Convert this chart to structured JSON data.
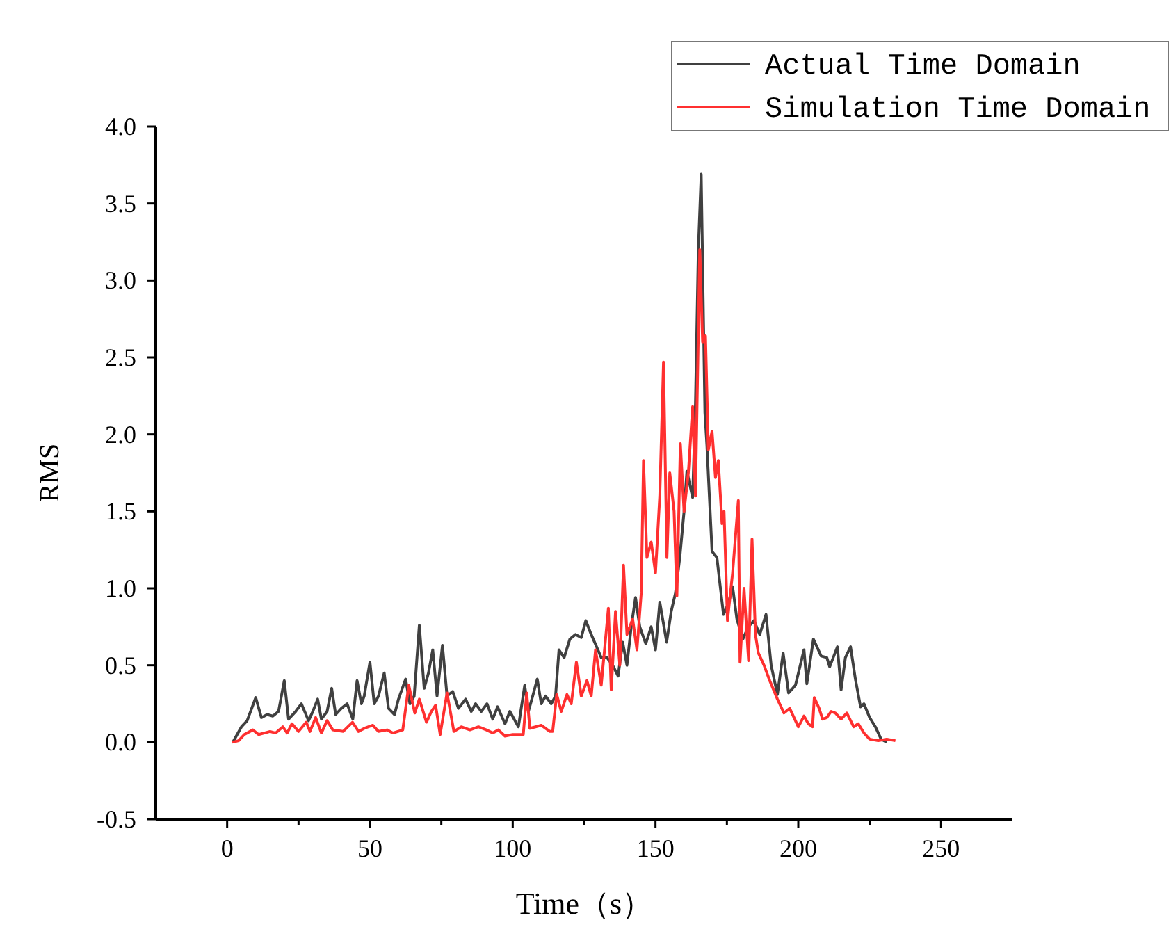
{
  "chart_data": {
    "type": "line",
    "xlabel": "Time（s）",
    "ylabel": "RMS",
    "xlim": [
      -25,
      275
    ],
    "ylim": [
      -0.5,
      4.0
    ],
    "xticks": [
      0,
      {
        "value": 25,
        "label": null
      },
      50,
      {
        "value": 75,
        "label": null
      },
      100,
      {
        "value": 125,
        "label": null
      },
      150,
      {
        "value": 175,
        "label": null
      },
      200,
      {
        "value": 225,
        "label": null
      },
      250
    ],
    "yticks": [
      -0.5,
      {
        "value": 0,
        "label": "0.0"
      },
      0.5,
      {
        "value": 1,
        "label": "1.0"
      },
      1.5,
      {
        "value": 2,
        "label": "2.0"
      },
      2.5,
      {
        "value": 3,
        "label": "3.0"
      },
      3.5,
      {
        "value": 4,
        "label": "4.0"
      }
    ],
    "legend": "top right",
    "grid": false,
    "line_style": "solid",
    "marker": "none",
    "series": [
      {
        "name": "Actual Time Domain",
        "color": "#404040",
        "x": [
          2,
          5,
          7,
          10,
          12,
          14,
          16,
          18,
          20,
          21.5,
          24,
          26,
          28.5,
          30,
          31.7,
          33,
          35,
          36.6,
          38,
          40,
          42,
          44,
          45.5,
          47,
          48,
          50,
          51.5,
          53,
          55,
          56.5,
          58.6,
          60,
          62.5,
          64,
          65.5,
          67.3,
          69,
          70.5,
          72,
          73.5,
          75.4,
          77,
          79,
          81,
          83.5,
          85.5,
          87,
          89,
          91,
          93,
          94.7,
          97.3,
          99,
          100.5,
          102,
          104.2,
          105.5,
          107,
          108.6,
          110,
          111.5,
          113.5,
          115,
          116.2,
          118,
          120,
          122,
          124,
          125.6,
          127.5,
          129.6,
          131,
          133,
          135,
          136.9,
          138.5,
          140,
          141.5,
          143,
          144.5,
          146.6,
          148.5,
          150,
          151.5,
          153.9,
          155.5,
          157,
          158.5,
          160,
          161,
          163,
          164,
          165,
          166,
          167.3,
          168,
          169.8,
          171.5,
          173.8,
          175.5,
          177,
          178.5,
          180.6,
          182.5,
          184.5,
          186.5,
          188.7,
          190.5,
          192.7,
          194.7,
          196.6,
          199,
          202,
          203,
          205.3,
          208,
          210,
          211,
          213.7,
          215,
          216.5,
          218.3,
          220,
          221.8,
          223,
          225,
          227,
          229,
          231
        ],
        "values": [
          0.0,
          0.1,
          0.14,
          0.29,
          0.16,
          0.18,
          0.17,
          0.2,
          0.4,
          0.15,
          0.2,
          0.25,
          0.14,
          0.2,
          0.28,
          0.15,
          0.2,
          0.35,
          0.18,
          0.22,
          0.25,
          0.15,
          0.4,
          0.25,
          0.3,
          0.52,
          0.25,
          0.3,
          0.45,
          0.22,
          0.18,
          0.28,
          0.41,
          0.25,
          0.3,
          0.76,
          0.35,
          0.45,
          0.6,
          0.3,
          0.63,
          0.3,
          0.33,
          0.22,
          0.28,
          0.2,
          0.25,
          0.2,
          0.25,
          0.15,
          0.23,
          0.12,
          0.2,
          0.15,
          0.1,
          0.37,
          0.2,
          0.3,
          0.41,
          0.25,
          0.3,
          0.25,
          0.3,
          0.6,
          0.55,
          0.67,
          0.7,
          0.68,
          0.79,
          0.7,
          0.61,
          0.55,
          0.55,
          0.5,
          0.43,
          0.65,
          0.5,
          0.75,
          0.94,
          0.75,
          0.64,
          0.75,
          0.6,
          0.91,
          0.65,
          0.85,
          0.97,
          1.2,
          1.5,
          1.76,
          1.59,
          2.2,
          3.2,
          3.69,
          2.14,
          1.93,
          1.24,
          1.2,
          0.83,
          0.9,
          1.01,
          0.8,
          0.67,
          0.75,
          0.79,
          0.7,
          0.83,
          0.5,
          0.31,
          0.58,
          0.32,
          0.37,
          0.6,
          0.38,
          0.67,
          0.56,
          0.55,
          0.49,
          0.62,
          0.34,
          0.55,
          0.62,
          0.41,
          0.23,
          0.25,
          0.16,
          0.1,
          0.02,
          0.0
        ]
      },
      {
        "name": "Simulation Time Domain",
        "color": "#ff3030",
        "x": [
          1.8,
          4,
          6,
          9,
          11,
          13,
          15,
          17,
          19.5,
          21,
          22.7,
          25,
          27.7,
          29,
          31,
          33,
          35,
          37,
          40.6,
          43.9,
          46,
          48,
          51,
          53,
          56,
          58,
          61.5,
          63.6,
          65.7,
          67.3,
          69.8,
          71.5,
          73,
          74.6,
          77,
          79.4,
          82,
          85,
          88,
          90.8,
          93,
          95,
          97.3,
          100,
          103.7,
          104.9,
          106,
          108,
          110,
          113,
          114,
          115.4,
          117,
          119,
          120.5,
          122.3,
          124,
          126,
          127.5,
          129,
          131,
          133.5,
          134.5,
          136,
          137.5,
          138.8,
          140,
          142,
          143.5,
          145,
          145.8,
          147,
          148.5,
          150,
          151.5,
          152.8,
          154,
          155,
          156.5,
          157.5,
          158.7,
          160,
          161.5,
          163,
          164,
          165.5,
          166.5,
          167.5,
          168.5,
          169.8,
          171,
          172,
          173.3,
          174,
          175.2,
          177,
          179,
          179.6,
          181,
          182.6,
          183.8,
          185,
          186,
          188,
          190,
          192.7,
          195,
          197,
          200,
          202,
          203.5,
          205,
          205.6,
          207.3,
          208.5,
          210,
          211.5,
          213,
          215,
          217,
          219.4,
          221,
          223,
          225,
          228,
          231,
          234
        ],
        "values": [
          0.0,
          0.01,
          0.05,
          0.08,
          0.05,
          0.06,
          0.07,
          0.06,
          0.1,
          0.06,
          0.12,
          0.07,
          0.13,
          0.07,
          0.16,
          0.06,
          0.14,
          0.08,
          0.07,
          0.13,
          0.07,
          0.09,
          0.11,
          0.07,
          0.08,
          0.06,
          0.08,
          0.37,
          0.19,
          0.28,
          0.13,
          0.2,
          0.24,
          0.05,
          0.32,
          0.07,
          0.1,
          0.08,
          0.1,
          0.08,
          0.06,
          0.08,
          0.04,
          0.05,
          0.05,
          0.32,
          0.09,
          0.1,
          0.11,
          0.07,
          0.07,
          0.31,
          0.2,
          0.31,
          0.25,
          0.52,
          0.3,
          0.4,
          0.3,
          0.6,
          0.37,
          0.87,
          0.34,
          0.85,
          0.5,
          1.15,
          0.7,
          0.8,
          0.6,
          0.97,
          1.83,
          1.2,
          1.3,
          1.1,
          1.6,
          2.47,
          1.2,
          1.75,
          1.5,
          0.95,
          1.94,
          1.5,
          1.75,
          2.18,
          1.6,
          3.2,
          2.6,
          2.64,
          1.9,
          2.02,
          1.72,
          1.83,
          1.42,
          1.5,
          0.79,
          1.1,
          1.57,
          0.52,
          1.0,
          0.53,
          1.32,
          0.7,
          0.58,
          0.5,
          0.4,
          0.28,
          0.19,
          0.22,
          0.1,
          0.17,
          0.12,
          0.1,
          0.29,
          0.22,
          0.15,
          0.16,
          0.2,
          0.19,
          0.15,
          0.19,
          0.1,
          0.12,
          0.06,
          0.02,
          0.01,
          0.02,
          0.01
        ]
      }
    ]
  }
}
